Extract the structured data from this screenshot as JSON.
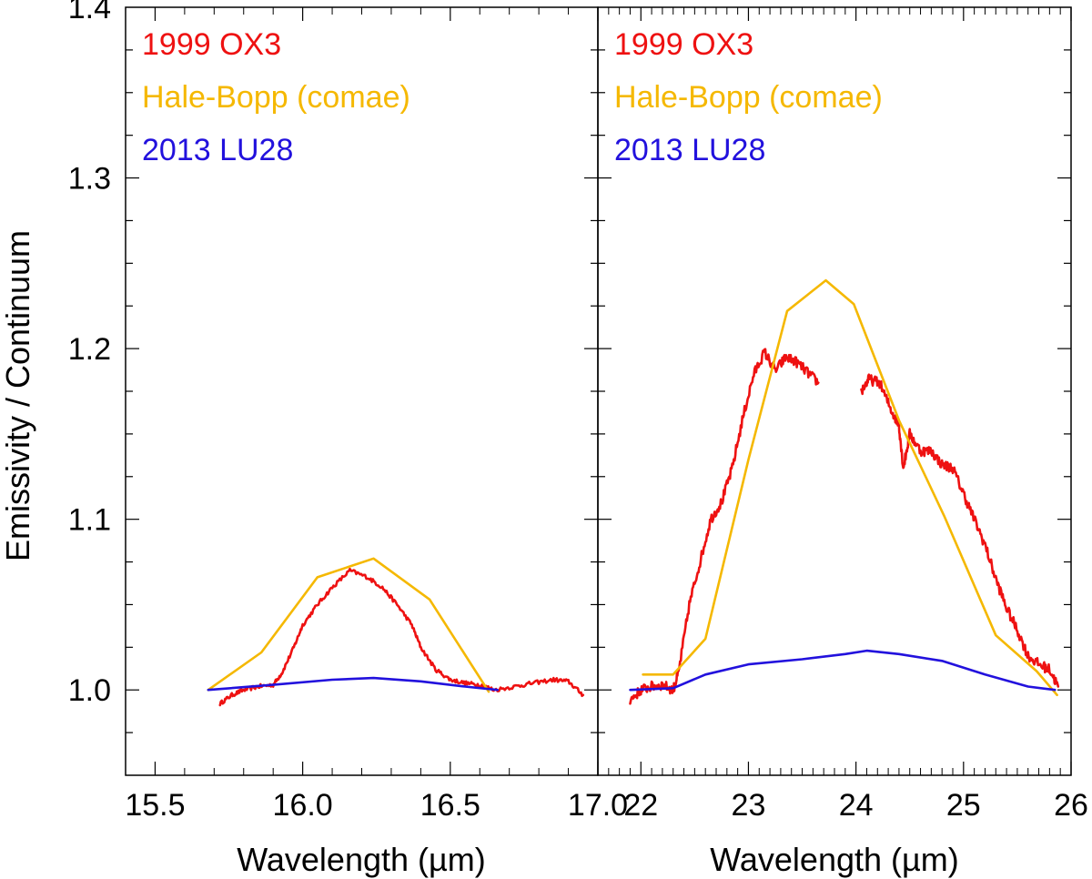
{
  "chart_data": {
    "type": "line",
    "ylabel": "Emissivity / Continuum",
    "ylim": [
      0.95,
      1.4
    ],
    "y_ticks": [
      "1.0",
      "1.1",
      "1.2",
      "1.3",
      "1.4"
    ],
    "legend": [
      {
        "name": "1999 OX3",
        "color": "#ee1111"
      },
      {
        "name": "Hale-Bopp (comae)",
        "color": "#f5b800"
      },
      {
        "name": "2013 LU28",
        "color": "#2211dd"
      }
    ],
    "panels": [
      {
        "xlabel": "Wavelength (µm)",
        "xlim": [
          15.4,
          17.0
        ],
        "x_ticks": [
          "15.5",
          "16.0",
          "16.5",
          "17.0"
        ],
        "series": [
          {
            "name": "1999 OX3",
            "color": "#ee1111",
            "noise": 0.0012,
            "segments": [
              [
                [
                  15.72,
                  0.992
                ],
                [
                  15.76,
                  0.997
                ],
                [
                  15.8,
                  1.0
                ],
                [
                  15.85,
                  1.002
                ],
                [
                  15.9,
                  1.003
                ],
                [
                  15.93,
                  1.01
                ],
                [
                  15.97,
                  1.025
                ],
                [
                  16.0,
                  1.038
                ],
                [
                  16.05,
                  1.05
                ],
                [
                  16.1,
                  1.06
                ],
                [
                  16.16,
                  1.07
                ],
                [
                  16.22,
                  1.066
                ],
                [
                  16.27,
                  1.06
                ],
                [
                  16.32,
                  1.05
                ],
                [
                  16.37,
                  1.038
                ],
                [
                  16.4,
                  1.025
                ],
                [
                  16.45,
                  1.012
                ],
                [
                  16.5,
                  1.006
                ],
                [
                  16.55,
                  1.004
                ],
                [
                  16.6,
                  1.003
                ],
                [
                  16.65,
                  1.0
                ],
                [
                  16.72,
                  1.002
                ],
                [
                  16.78,
                  1.004
                ],
                [
                  16.85,
                  1.006
                ],
                [
                  16.9,
                  1.005
                ],
                [
                  16.95,
                  0.997
                ]
              ]
            ]
          },
          {
            "name": "Hale-Bopp (comae)",
            "color": "#f5b800",
            "noise": 0,
            "segments": [
              [
                [
                  15.68,
                  1.0
                ],
                [
                  15.86,
                  1.022
                ],
                [
                  16.05,
                  1.066
                ],
                [
                  16.24,
                  1.077
                ],
                [
                  16.43,
                  1.053
                ],
                [
                  16.63,
                  0.999
                ]
              ]
            ]
          },
          {
            "name": "2013 LU28",
            "color": "#2211dd",
            "noise": 0,
            "segments": [
              [
                [
                  15.68,
                  1.0
                ],
                [
                  15.9,
                  1.003
                ],
                [
                  16.1,
                  1.006
                ],
                [
                  16.24,
                  1.007
                ],
                [
                  16.4,
                  1.005
                ],
                [
                  16.55,
                  1.002
                ],
                [
                  16.66,
                  1.0
                ]
              ]
            ]
          }
        ]
      },
      {
        "xlabel": "Wavelength (µm)",
        "xlim": [
          21.6,
          26.0
        ],
        "x_ticks": [
          "22",
          "23",
          "24",
          "25",
          "26"
        ],
        "series": [
          {
            "name": "1999 OX3",
            "color": "#ee1111",
            "noise": 0.003,
            "segments": [
              [
                [
                  21.9,
                  0.994
                ],
                [
                  22.0,
                  1.0
                ],
                [
                  22.1,
                  1.002
                ],
                [
                  22.2,
                  1.003
                ],
                [
                  22.3,
                  1.0
                ],
                [
                  22.35,
                  1.01
                ],
                [
                  22.45,
                  1.05
                ],
                [
                  22.55,
                  1.075
                ],
                [
                  22.65,
                  1.1
                ],
                [
                  22.75,
                  1.11
                ],
                [
                  22.85,
                  1.13
                ],
                [
                  22.95,
                  1.16
                ],
                [
                  23.05,
                  1.185
                ],
                [
                  23.15,
                  1.198
                ],
                [
                  23.25,
                  1.187
                ],
                [
                  23.35,
                  1.195
                ],
                [
                  23.45,
                  1.192
                ],
                [
                  23.55,
                  1.186
                ],
                [
                  23.65,
                  1.18
                ]
              ],
              [
                [
                  24.05,
                  1.175
                ],
                [
                  24.12,
                  1.182
                ],
                [
                  24.22,
                  1.18
                ],
                [
                  24.32,
                  1.165
                ],
                [
                  24.4,
                  1.155
                ],
                [
                  24.44,
                  1.13
                ],
                [
                  24.5,
                  1.15
                ],
                [
                  24.6,
                  1.14
                ],
                [
                  24.7,
                  1.14
                ],
                [
                  24.8,
                  1.132
                ],
                [
                  24.9,
                  1.13
                ],
                [
                  25.0,
                  1.115
                ],
                [
                  25.1,
                  1.1
                ],
                [
                  25.2,
                  1.085
                ],
                [
                  25.3,
                  1.065
                ],
                [
                  25.4,
                  1.048
                ],
                [
                  25.5,
                  1.035
                ],
                [
                  25.6,
                  1.02
                ],
                [
                  25.7,
                  1.015
                ],
                [
                  25.8,
                  1.012
                ],
                [
                  25.88,
                  1.002
                ]
              ]
            ]
          },
          {
            "name": "Hale-Bopp (comae)",
            "color": "#f5b800",
            "noise": 0,
            "segments": [
              [
                [
                  22.02,
                  1.009
                ],
                [
                  22.3,
                  1.009
                ],
                [
                  22.6,
                  1.03
                ],
                [
                  23.0,
                  1.135
                ],
                [
                  23.36,
                  1.222
                ],
                [
                  23.72,
                  1.24
                ],
                [
                  23.98,
                  1.226
                ],
                [
                  24.4,
                  1.158
                ],
                [
                  24.82,
                  1.102
                ],
                [
                  25.3,
                  1.032
                ],
                [
                  25.68,
                  1.011
                ],
                [
                  25.87,
                  0.997
                ]
              ]
            ]
          },
          {
            "name": "2013 LU28",
            "color": "#2211dd",
            "noise": 0,
            "segments": [
              [
                [
                  21.9,
                  1.0
                ],
                [
                  22.3,
                  1.001
                ],
                [
                  22.6,
                  1.009
                ],
                [
                  23.0,
                  1.015
                ],
                [
                  23.5,
                  1.018
                ],
                [
                  23.9,
                  1.021
                ],
                [
                  24.1,
                  1.023
                ],
                [
                  24.4,
                  1.021
                ],
                [
                  24.8,
                  1.017
                ],
                [
                  25.2,
                  1.009
                ],
                [
                  25.6,
                  1.002
                ],
                [
                  25.85,
                  1.0
                ]
              ]
            ]
          }
        ]
      }
    ]
  }
}
